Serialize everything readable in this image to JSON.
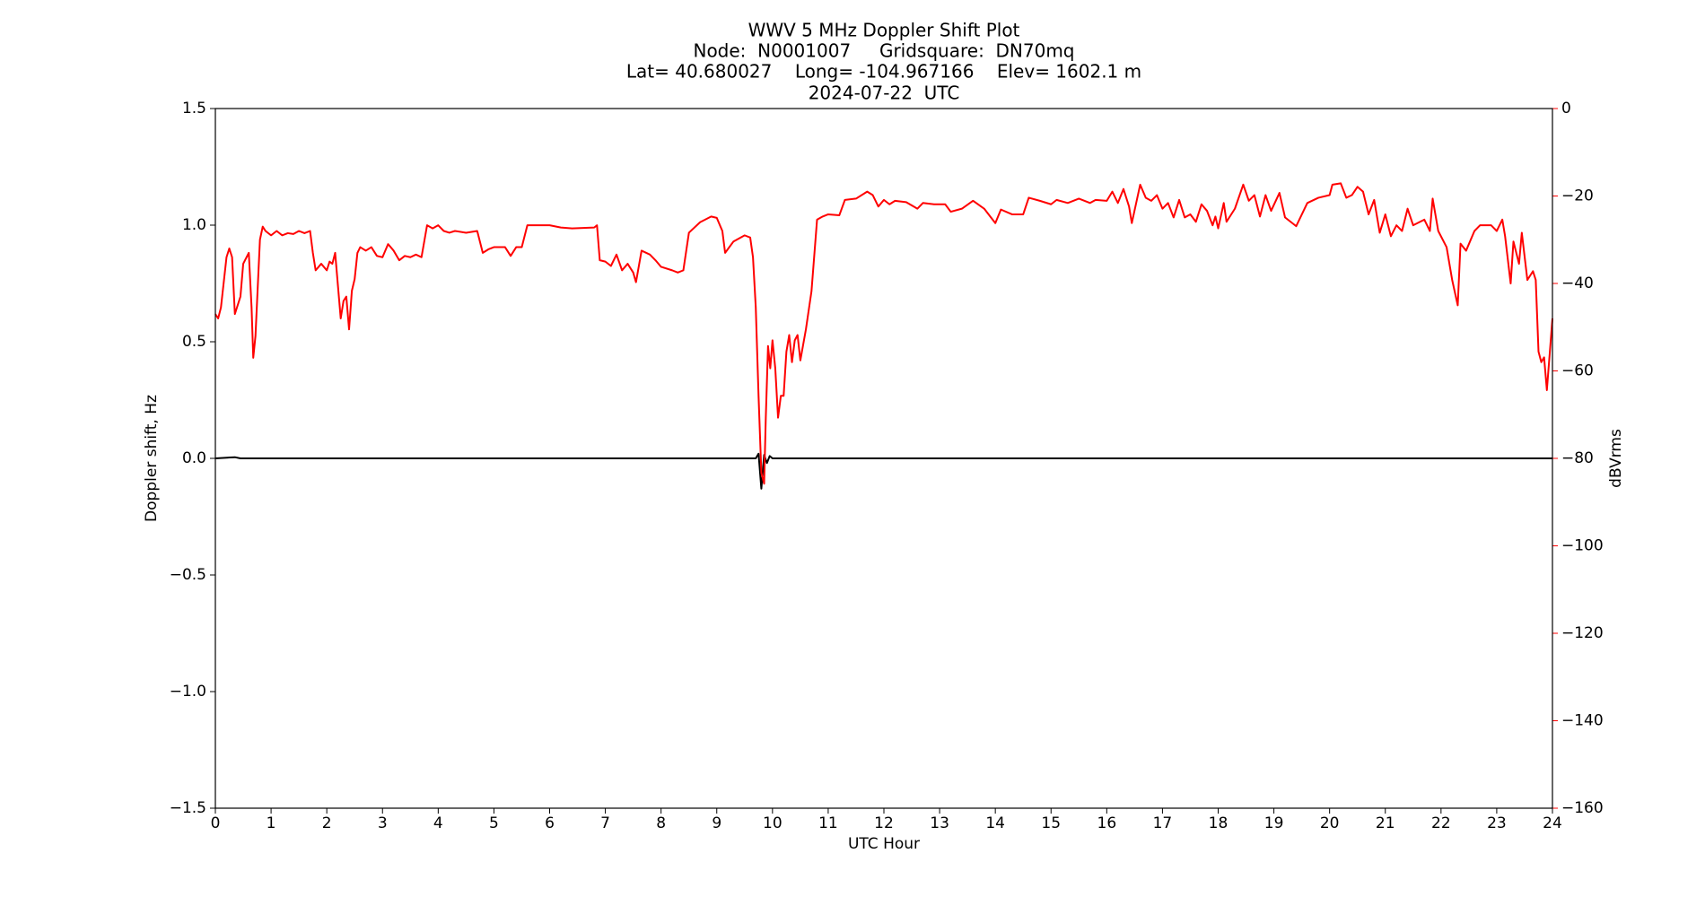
{
  "chart_data": {
    "type": "line",
    "title_lines": [
      "WWV 5 MHz Doppler Shift Plot",
      "Node:  N0001007     Gridsquare:  DN70mq",
      "Lat= 40.680027    Long= -104.967166    Elev= 1602.1 m",
      "2024-07-22  UTC"
    ],
    "x_label": "UTC Hour",
    "y_label": "Doppler shift, Hz",
    "y2_label": "dBVrms",
    "y2_color": "#ff0000",
    "xlim": [
      0,
      24
    ],
    "xticks": [
      0,
      1,
      2,
      3,
      4,
      5,
      6,
      7,
      8,
      9,
      10,
      11,
      12,
      13,
      14,
      15,
      16,
      17,
      18,
      19,
      20,
      21,
      22,
      23,
      24
    ],
    "ylim": [
      -1.5,
      1.5
    ],
    "yticks": [
      {
        "value": -1.5,
        "label": "−1.5"
      },
      {
        "value": -1.0,
        "label": "−1.0"
      },
      {
        "value": -0.5,
        "label": "−0.5"
      },
      {
        "value": 0,
        "label": "0.0"
      },
      {
        "value": 0.5,
        "label": "0.5"
      },
      {
        "value": 1.0,
        "label": "1.0"
      },
      {
        "value": 1.5,
        "label": "1.5"
      }
    ],
    "y2lim": [
      -160,
      0
    ],
    "y2ticks": [
      {
        "value": -160,
        "label": "−160"
      },
      {
        "value": -140,
        "label": "−140"
      },
      {
        "value": -120,
        "label": "−120"
      },
      {
        "value": -100,
        "label": "−100"
      },
      {
        "value": -80,
        "label": "−80"
      },
      {
        "value": -60,
        "label": "−60"
      },
      {
        "value": -40,
        "label": "−40"
      },
      {
        "value": -20,
        "label": "−20"
      },
      0
    ],
    "grid": false,
    "series": [
      {
        "color": "#000000",
        "axis": "y",
        "x": [
          0,
          0.35,
          0.45,
          9.7,
          9.75,
          9.8,
          9.85,
          9.9,
          9.95,
          10.0,
          24
        ],
        "values": [
          0,
          0.005,
          0,
          0,
          0.02,
          -0.13,
          0.015,
          -0.02,
          0.01,
          0,
          0
        ]
      },
      {
        "color": "#ff0000",
        "axis": "y2",
        "x": [
          0,
          0.05,
          0.1,
          0.2,
          0.25,
          0.3,
          0.35,
          0.45,
          0.5,
          0.6,
          0.65,
          0.68,
          0.72,
          0.8,
          0.85,
          0.9,
          1.0,
          1.1,
          1.2,
          1.3,
          1.4,
          1.5,
          1.6,
          1.7,
          1.75,
          1.8,
          1.9,
          2.0,
          2.05,
          2.1,
          2.15,
          2.2,
          2.25,
          2.3,
          2.35,
          2.4,
          2.45,
          2.5,
          2.55,
          2.6,
          2.7,
          2.8,
          2.9,
          3.0,
          3.1,
          3.2,
          3.3,
          3.4,
          3.5,
          3.6,
          3.7,
          3.8,
          3.9,
          4.0,
          4.1,
          4.2,
          4.3,
          4.5,
          4.7,
          4.8,
          4.9,
          5.0,
          5.2,
          5.3,
          5.4,
          5.5,
          5.6,
          5.8,
          6.0,
          6.2,
          6.4,
          6.8,
          6.85,
          6.9,
          7.0,
          7.1,
          7.2,
          7.3,
          7.4,
          7.5,
          7.55,
          7.65,
          7.8,
          7.9,
          8.0,
          8.2,
          8.3,
          8.4,
          8.5,
          8.7,
          8.9,
          9.0,
          9.1,
          9.15,
          9.3,
          9.5,
          9.6,
          9.65,
          9.7,
          9.75,
          9.8,
          9.85,
          9.88,
          9.92,
          9.96,
          10.0,
          10.05,
          10.1,
          10.15,
          10.2,
          10.25,
          10.3,
          10.35,
          10.4,
          10.45,
          10.5,
          10.6,
          10.7,
          10.8,
          10.9,
          11.0,
          11.2,
          11.3,
          11.5,
          11.7,
          11.8,
          11.9,
          12.0,
          12.1,
          12.2,
          12.4,
          12.6,
          12.7,
          12.9,
          13.1,
          13.2,
          13.4,
          13.6,
          13.8,
          14.0,
          14.1,
          14.3,
          14.5,
          14.6,
          14.8,
          15.0,
          15.1,
          15.3,
          15.5,
          15.7,
          15.8,
          16.0,
          16.1,
          16.2,
          16.3,
          16.4,
          16.45,
          16.6,
          16.7,
          16.8,
          16.9,
          17.0,
          17.1,
          17.2,
          17.3,
          17.4,
          17.5,
          17.6,
          17.7,
          17.8,
          17.9,
          17.95,
          18.0,
          18.1,
          18.15,
          18.3,
          18.45,
          18.55,
          18.65,
          18.75,
          18.85,
          18.95,
          19.1,
          19.2,
          19.4,
          19.6,
          19.8,
          20.0,
          20.05,
          20.2,
          20.3,
          20.4,
          20.5,
          20.6,
          20.7,
          20.8,
          20.9,
          21.0,
          21.1,
          21.2,
          21.3,
          21.4,
          21.5,
          21.7,
          21.8,
          21.85,
          21.95,
          22.1,
          22.2,
          22.3,
          22.35,
          22.45,
          22.6,
          22.7,
          22.9,
          23.0,
          23.1,
          23.15,
          23.25,
          23.3,
          23.4,
          23.45,
          23.55,
          23.65,
          23.7,
          23.75,
          23.8,
          23.85,
          23.9,
          24.0
        ],
        "values": [
          -47,
          -48,
          -45.5,
          -34,
          -32,
          -34,
          -47,
          -43,
          -35.5,
          -33,
          -45.5,
          -57,
          -52,
          -30,
          -27,
          -28,
          -29,
          -28,
          -29,
          -28.5,
          -28.7,
          -28,
          -28.5,
          -28,
          -33,
          -37,
          -35.5,
          -37,
          -35,
          -35.5,
          -33,
          -40.5,
          -48,
          -44,
          -43,
          -50.5,
          -41.7,
          -39,
          -33,
          -31.7,
          -32.5,
          -31.7,
          -33.7,
          -34,
          -31,
          -32.5,
          -34.7,
          -33.7,
          -34,
          -33.4,
          -34,
          -26.7,
          -27.4,
          -26.7,
          -28,
          -28.4,
          -28,
          -28.4,
          -28,
          -33,
          -32.2,
          -31.7,
          -31.7,
          -33.7,
          -31.7,
          -31.7,
          -26.7,
          -26.7,
          -26.7,
          -27.2,
          -27.4,
          -27.2,
          -26.7,
          -34.7,
          -35,
          -36,
          -33.4,
          -37,
          -35.5,
          -37.5,
          -39.7,
          -32.5,
          -33.4,
          -34.7,
          -36.2,
          -37,
          -37.5,
          -37,
          -28.4,
          -26,
          -24.7,
          -25,
          -28,
          -33,
          -30.4,
          -29,
          -29.5,
          -34,
          -45.5,
          -65.7,
          -83.3,
          -85.8,
          -70.7,
          -54.3,
          -59.4,
          -53,
          -59.4,
          -70.7,
          -65.7,
          -65.7,
          -55.6,
          -51.8,
          -58,
          -53,
          -51.8,
          -57.6,
          -50.5,
          -41.8,
          -25.4,
          -24.7,
          -24.2,
          -24.4,
          -20.9,
          -20.6,
          -19,
          -19.8,
          -22.4,
          -20.9,
          -21.9,
          -21.1,
          -21.4,
          -22.9,
          -21.6,
          -21.9,
          -21.9,
          -23.6,
          -22.9,
          -21.1,
          -22.9,
          -26.2,
          -23.1,
          -24.2,
          -24.2,
          -20.4,
          -21.1,
          -21.9,
          -20.9,
          -21.6,
          -20.6,
          -21.6,
          -20.9,
          -21.1,
          -19,
          -21.6,
          -18.4,
          -22.4,
          -26.2,
          -17.4,
          -20.4,
          -21.1,
          -19.8,
          -22.9,
          -21.6,
          -24.9,
          -20.9,
          -24.9,
          -24.2,
          -25.9,
          -21.9,
          -23.4,
          -26.7,
          -24.7,
          -27.4,
          -21.6,
          -25.9,
          -22.9,
          -17.4,
          -21.1,
          -19.8,
          -24.7,
          -19.8,
          -23.4,
          -19.3,
          -24.9,
          -26.9,
          -21.6,
          -20.4,
          -19.8,
          -17.4,
          -17.1,
          -20.4,
          -19.8,
          -17.9,
          -19,
          -24.2,
          -20.9,
          -28.4,
          -24.2,
          -29.2,
          -26.7,
          -28,
          -22.9,
          -26.7,
          -25.4,
          -28,
          -20.6,
          -28,
          -31.7,
          -39.2,
          -45,
          -30.9,
          -32.5,
          -28,
          -26.7,
          -26.7,
          -28,
          -25.4,
          -29.2,
          -40,
          -30.4,
          -35.5,
          -28.4,
          -39.2,
          -37.2,
          -39.2,
          -55.6,
          -58,
          -56.9,
          -64.4,
          -48
        ]
      }
    ]
  }
}
